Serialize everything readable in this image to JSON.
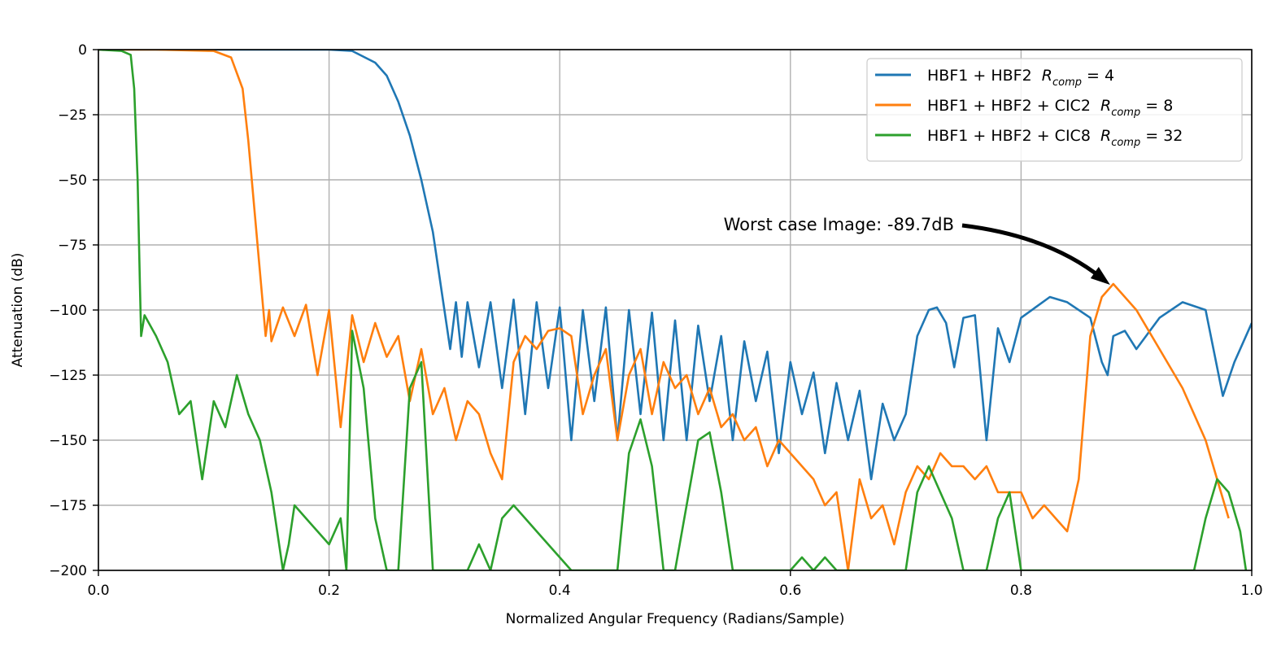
{
  "chart_data": {
    "type": "line",
    "title": "",
    "xlabel": "Normalized Angular Frequency (Radians/Sample)",
    "ylabel": "Attenuation (dB)",
    "xlim": [
      0.0,
      1.0
    ],
    "ylim": [
      -200,
      0
    ],
    "xticks": [
      0.0,
      0.2,
      0.4,
      0.6,
      0.8,
      1.0
    ],
    "xtick_labels": [
      "0.0",
      "0.2",
      "0.4",
      "0.6",
      "0.8",
      "1.0"
    ],
    "yticks": [
      0,
      -25,
      -50,
      -75,
      -100,
      -125,
      -150,
      -175,
      -200
    ],
    "ytick_labels": [
      "0",
      "−25",
      "−50",
      "−75",
      "−100",
      "−125",
      "−150",
      "−175",
      "−200"
    ],
    "grid": true,
    "legend_position": "top-right",
    "series": [
      {
        "name": "HBF1 + HBF2",
        "rcomp": "4",
        "color": "#1f77b4",
        "x": [
          0.0,
          0.1,
          0.2,
          0.22,
          0.24,
          0.25,
          0.26,
          0.27,
          0.28,
          0.285,
          0.29,
          0.295,
          0.3,
          0.305,
          0.31,
          0.315,
          0.32,
          0.33,
          0.34,
          0.35,
          0.36,
          0.37,
          0.38,
          0.39,
          0.4,
          0.41,
          0.42,
          0.43,
          0.44,
          0.45,
          0.46,
          0.47,
          0.48,
          0.49,
          0.5,
          0.51,
          0.52,
          0.53,
          0.54,
          0.55,
          0.56,
          0.57,
          0.58,
          0.59,
          0.6,
          0.61,
          0.62,
          0.63,
          0.64,
          0.65,
          0.66,
          0.67,
          0.68,
          0.69,
          0.7,
          0.71,
          0.72,
          0.727,
          0.735,
          0.742,
          0.75,
          0.76,
          0.77,
          0.78,
          0.79,
          0.8,
          0.825,
          0.84,
          0.86,
          0.87,
          0.875,
          0.88,
          0.89,
          0.9,
          0.92,
          0.94,
          0.96,
          0.975,
          0.985,
          1.0
        ],
        "values": [
          0,
          0,
          0,
          -0.5,
          -5,
          -10,
          -20,
          -33,
          -50,
          -60,
          -70,
          -85,
          -100,
          -115,
          -97,
          -118,
          -97,
          -122,
          -97,
          -130,
          -96,
          -140,
          -97,
          -130,
          -99,
          -150,
          -100,
          -135,
          -99,
          -150,
          -100,
          -140,
          -101,
          -150,
          -104,
          -150,
          -106,
          -135,
          -110,
          -150,
          -112,
          -135,
          -116,
          -155,
          -120,
          -140,
          -124,
          -155,
          -128,
          -150,
          -131,
          -165,
          -136,
          -150,
          -140,
          -110,
          -100,
          -99,
          -105,
          -122,
          -103,
          -102,
          -150,
          -107,
          -120,
          -103,
          -95,
          -97,
          -103,
          -120,
          -125,
          -110,
          -108,
          -115,
          -103,
          -97,
          -100,
          -133,
          -120,
          -105
        ]
      },
      {
        "name": "HBF1 + HBF2 + CIC2",
        "rcomp": "8",
        "color": "#ff7f0e",
        "x": [
          0.0,
          0.05,
          0.1,
          0.115,
          0.125,
          0.13,
          0.135,
          0.14,
          0.145,
          0.148,
          0.15,
          0.16,
          0.17,
          0.18,
          0.19,
          0.2,
          0.21,
          0.22,
          0.23,
          0.24,
          0.25,
          0.26,
          0.27,
          0.28,
          0.29,
          0.3,
          0.31,
          0.32,
          0.33,
          0.34,
          0.35,
          0.36,
          0.37,
          0.38,
          0.39,
          0.4,
          0.41,
          0.42,
          0.43,
          0.44,
          0.45,
          0.46,
          0.47,
          0.48,
          0.49,
          0.5,
          0.51,
          0.52,
          0.53,
          0.54,
          0.55,
          0.56,
          0.57,
          0.58,
          0.59,
          0.6,
          0.61,
          0.62,
          0.63,
          0.64,
          0.65,
          0.66,
          0.67,
          0.68,
          0.69,
          0.7,
          0.71,
          0.72,
          0.73,
          0.74,
          0.75,
          0.76,
          0.77,
          0.78,
          0.79,
          0.8,
          0.81,
          0.82,
          0.83,
          0.84,
          0.85,
          0.86,
          0.87,
          0.88,
          0.9,
          0.92,
          0.94,
          0.96,
          0.98
        ],
        "values": [
          0,
          0,
          -0.5,
          -3,
          -15,
          -35,
          -60,
          -85,
          -110,
          -100,
          -112,
          -99,
          -110,
          -98,
          -125,
          -100,
          -145,
          -102,
          -120,
          -105,
          -118,
          -110,
          -135,
          -115,
          -140,
          -130,
          -150,
          -135,
          -140,
          -155,
          -165,
          -120,
          -110,
          -115,
          -108,
          -107,
          -110,
          -140,
          -125,
          -115,
          -150,
          -125,
          -115,
          -140,
          -120,
          -130,
          -125,
          -140,
          -130,
          -145,
          -140,
          -150,
          -145,
          -160,
          -150,
          -155,
          -160,
          -165,
          -175,
          -170,
          -200,
          -165,
          -180,
          -175,
          -190,
          -170,
          -160,
          -165,
          -155,
          -160,
          -160,
          -165,
          -160,
          -170,
          -170,
          -170,
          -180,
          -175,
          -180,
          -185,
          -165,
          -110,
          -95,
          -90,
          -100,
          -115,
          -130,
          -150,
          -180
        ]
      },
      {
        "name": "HBF1 + HBF2 + CIC8",
        "rcomp": "32",
        "color": "#2ca02c",
        "x": [
          0.0,
          0.02,
          0.028,
          0.031,
          0.034,
          0.036,
          0.037,
          0.04,
          0.05,
          0.06,
          0.07,
          0.08,
          0.09,
          0.1,
          0.11,
          0.12,
          0.13,
          0.14,
          0.15,
          0.16,
          0.165,
          0.17,
          0.18,
          0.19,
          0.2,
          0.21,
          0.215,
          0.22,
          0.23,
          0.24,
          0.25,
          0.26,
          0.27,
          0.28,
          0.29,
          0.3,
          0.31,
          0.32,
          0.33,
          0.34,
          0.35,
          0.36,
          0.37,
          0.38,
          0.39,
          0.4,
          0.41,
          0.45,
          0.46,
          0.47,
          0.48,
          0.49,
          0.5,
          0.51,
          0.52,
          0.53,
          0.54,
          0.55,
          0.6,
          0.61,
          0.62,
          0.63,
          0.64,
          0.65,
          0.66,
          0.67,
          0.68,
          0.69,
          0.7,
          0.71,
          0.72,
          0.73,
          0.74,
          0.75,
          0.76,
          0.77,
          0.78,
          0.79,
          0.8,
          0.95,
          0.96,
          0.97,
          0.98,
          0.99,
          0.995
        ],
        "values": [
          0,
          -0.5,
          -2,
          -15,
          -50,
          -90,
          -110,
          -102,
          -110,
          -120,
          -140,
          -135,
          -165,
          -135,
          -145,
          -125,
          -140,
          -150,
          -170,
          -200,
          -190,
          -175,
          -180,
          -185,
          -190,
          -180,
          -200,
          -108,
          -130,
          -180,
          -200,
          -200,
          -130,
          -120,
          -200,
          -200,
          -200,
          -200,
          -190,
          -200,
          -180,
          -175,
          -180,
          -185,
          -190,
          -195,
          -200,
          -200,
          -155,
          -142,
          -160,
          -200,
          -200,
          -175,
          -150,
          -147,
          -170,
          -200,
          -200,
          -195,
          -200,
          -195,
          -200,
          -200,
          -200,
          -200,
          -200,
          -200,
          -200,
          -170,
          -160,
          -170,
          -180,
          -200,
          -200,
          -200,
          -180,
          -170,
          -200,
          -200,
          -180,
          -165,
          -170,
          -185,
          -200
        ]
      }
    ],
    "legend": {
      "r_symbol": "R",
      "r_subscript": "comp"
    },
    "annotation": {
      "text": "Worst case Image: -89.7dB",
      "x": 0.88,
      "y": -89.7
    }
  }
}
